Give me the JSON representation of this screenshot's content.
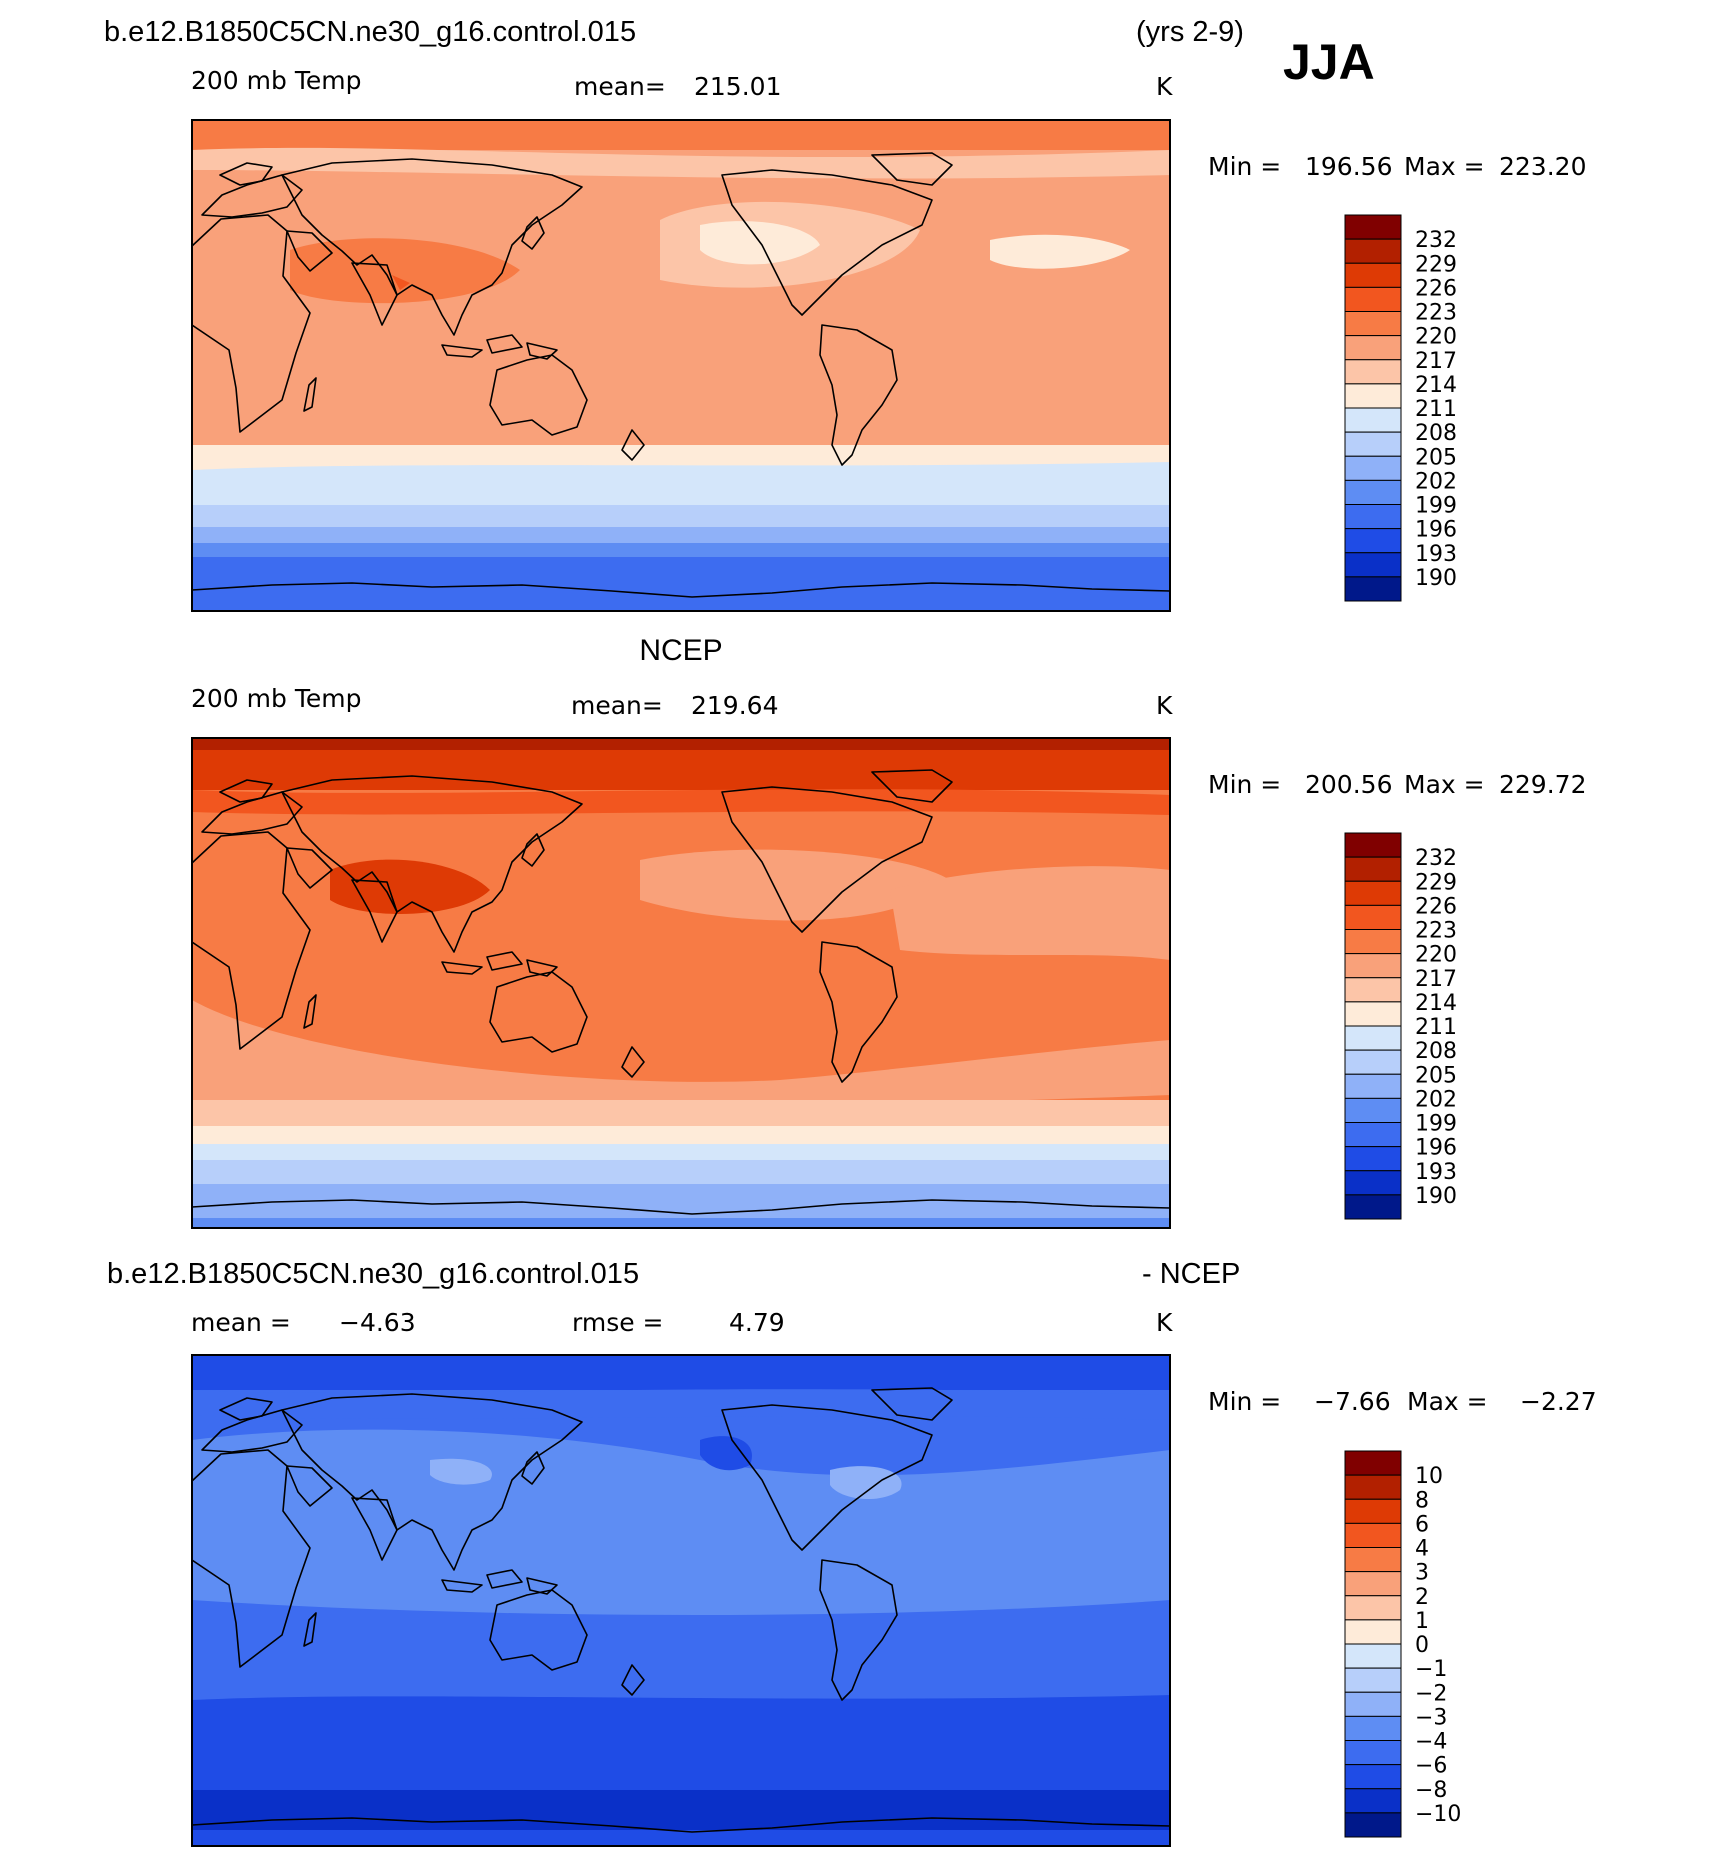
{
  "header": {
    "case_title": "b.e12.B1850C5CN.ne30_g16.control.015",
    "years": "(yrs 2-9)",
    "season": "JJA"
  },
  "panels": [
    {
      "id": "model",
      "title": "",
      "variable": "200 mb Temp",
      "stat_label": "mean=",
      "stat_value": "215.01",
      "units": "K",
      "min_label": "Min =",
      "min_value": "196.56",
      "max_label": "Max =",
      "max_value": "223.20",
      "colorbar_labels": [
        "232",
        "229",
        "226",
        "223",
        "220",
        "217",
        "214",
        "211",
        "208",
        "205",
        "202",
        "199",
        "196",
        "193",
        "190"
      ]
    },
    {
      "id": "ncep",
      "title": "NCEP",
      "variable": "200 mb Temp",
      "stat_label": "mean=",
      "stat_value": "219.64",
      "units": "K",
      "min_label": "Min =",
      "min_value": "200.56",
      "max_label": "Max =",
      "max_value": "229.72",
      "colorbar_labels": [
        "232",
        "229",
        "226",
        "223",
        "220",
        "217",
        "214",
        "211",
        "208",
        "205",
        "202",
        "199",
        "196",
        "193",
        "190"
      ]
    },
    {
      "id": "diff",
      "title_left": "b.e12.B1850C5CN.ne30_g16.control.015",
      "title_right": "- NCEP",
      "stat_label": "mean =",
      "stat_value": "−4.63",
      "stat2_label": "rmse =",
      "stat2_value": "4.79",
      "units": "K",
      "min_label": "Min =",
      "min_value": "−7.66",
      "max_label": "Max =",
      "max_value": "−2.27",
      "colorbar_labels": [
        "10",
        "8",
        "6",
        "4",
        "3",
        "2",
        "1",
        "0",
        "−1",
        "−2",
        "−3",
        "−4",
        "−6",
        "−8",
        "−10"
      ]
    }
  ],
  "colors": {
    "colorbar_top_to_bottom": [
      "#800000",
      "#b22000",
      "#de3a05",
      "#f2561f",
      "#f77b45",
      "#f9a17a",
      "#fcc5a8",
      "#feebd9",
      "#d4e6fa",
      "#b7cffa",
      "#8fb1f8",
      "#5e8df3",
      "#3d6cf0",
      "#1f4ce6",
      "#0a30c8",
      "#00188a"
    ],
    "land_outline": "#000000"
  }
}
